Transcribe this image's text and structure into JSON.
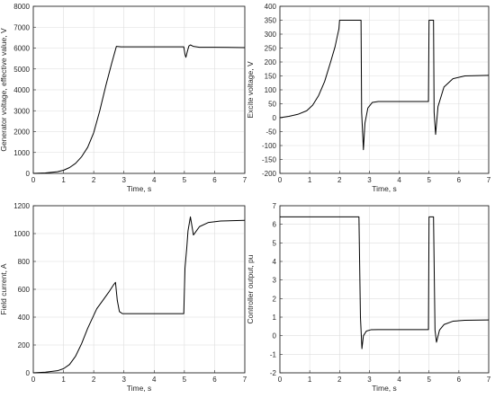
{
  "chart_data": [
    {
      "type": "line",
      "xlabel": "Time, s",
      "ylabel": "Generator voltage, effective value, V",
      "xlim": [
        0,
        7
      ],
      "ylim": [
        0,
        8000
      ],
      "xticks": [
        0,
        1,
        2,
        3,
        4,
        5,
        6,
        7
      ],
      "yticks": [
        0,
        1000,
        2000,
        3000,
        4000,
        5000,
        6000,
        7000,
        8000
      ],
      "grid": true,
      "series": [
        {
          "color": "#000000",
          "x": [
            0,
            0.4,
            0.8,
            1.0,
            1.2,
            1.4,
            1.6,
            1.8,
            2.0,
            2.2,
            2.4,
            2.6,
            2.75,
            2.9,
            3.5,
            4.5,
            4.98,
            5.02,
            5.05,
            5.1,
            5.15,
            5.2,
            5.3,
            5.5,
            6.0,
            7.0
          ],
          "y": [
            0,
            20,
            80,
            150,
            280,
            480,
            800,
            1250,
            1950,
            3000,
            4200,
            5300,
            6080,
            6060,
            6060,
            6060,
            6060,
            5700,
            5560,
            5850,
            6100,
            6150,
            6080,
            6040,
            6040,
            6020
          ]
        }
      ]
    },
    {
      "type": "line",
      "xlabel": "Time, s",
      "ylabel": "Excite voltage, V",
      "xlim": [
        0,
        7
      ],
      "ylim": [
        -200,
        400
      ],
      "xticks": [
        0,
        1,
        2,
        3,
        4,
        5,
        6,
        7
      ],
      "yticks": [
        -200,
        -150,
        -100,
        -50,
        0,
        50,
        100,
        150,
        200,
        250,
        300,
        350,
        400
      ],
      "grid": true,
      "series": [
        {
          "color": "#000000",
          "x": [
            0,
            0.3,
            0.6,
            0.9,
            1.1,
            1.3,
            1.5,
            1.7,
            1.85,
            1.98,
            2.0,
            2.72,
            2.74,
            2.8,
            2.85,
            2.95,
            3.1,
            3.3,
            4.98,
            5.0,
            5.15,
            5.17,
            5.22,
            5.3,
            5.5,
            5.8,
            6.2,
            7.0
          ],
          "y": [
            0,
            5,
            12,
            25,
            45,
            80,
            130,
            200,
            255,
            320,
            350,
            350,
            20,
            -115,
            -20,
            35,
            55,
            58,
            58,
            350,
            350,
            20,
            -60,
            40,
            110,
            140,
            150,
            152
          ]
        }
      ]
    },
    {
      "type": "line",
      "xlabel": "Time, s",
      "ylabel": "Field current, A",
      "xlim": [
        0,
        7
      ],
      "ylim": [
        0,
        1200
      ],
      "xticks": [
        0,
        1,
        2,
        3,
        4,
        5,
        6,
        7
      ],
      "yticks": [
        0,
        200,
        400,
        600,
        800,
        1000,
        1200
      ],
      "grid": true,
      "series": [
        {
          "color": "#000000",
          "x": [
            0,
            0.4,
            0.8,
            1.0,
            1.2,
            1.4,
            1.6,
            1.8,
            1.95,
            2.1,
            2.3,
            2.5,
            2.65,
            2.72,
            2.78,
            2.85,
            2.95,
            3.5,
            4.98,
            5.02,
            5.08,
            5.12,
            5.2,
            5.3,
            5.5,
            5.8,
            6.2,
            7.0
          ],
          "y": [
            0,
            5,
            15,
            30,
            60,
            120,
            210,
            320,
            390,
            460,
            520,
            580,
            630,
            650,
            520,
            440,
            425,
            425,
            425,
            750,
            900,
            1020,
            1120,
            990,
            1050,
            1080,
            1090,
            1095
          ]
        }
      ]
    },
    {
      "type": "line",
      "xlabel": "Time, s",
      "ylabel": "Controller output, pu",
      "xlim": [
        0,
        7
      ],
      "ylim": [
        -2,
        7
      ],
      "xticks": [
        0,
        1,
        2,
        3,
        4,
        5,
        6,
        7
      ],
      "yticks": [
        -2,
        -1,
        0,
        1,
        2,
        3,
        4,
        5,
        6,
        7
      ],
      "grid": true,
      "series": [
        {
          "color": "#000000",
          "x": [
            0,
            2.65,
            2.7,
            2.75,
            2.8,
            2.9,
            3.05,
            3.3,
            4.98,
            5.0,
            5.15,
            5.2,
            5.25,
            5.35,
            5.5,
            5.8,
            6.2,
            7.0
          ],
          "y": [
            6.4,
            6.4,
            1.0,
            -0.7,
            0.0,
            0.25,
            0.32,
            0.33,
            0.33,
            6.4,
            6.4,
            0.3,
            -0.35,
            0.3,
            0.6,
            0.78,
            0.83,
            0.85
          ]
        }
      ]
    }
  ]
}
